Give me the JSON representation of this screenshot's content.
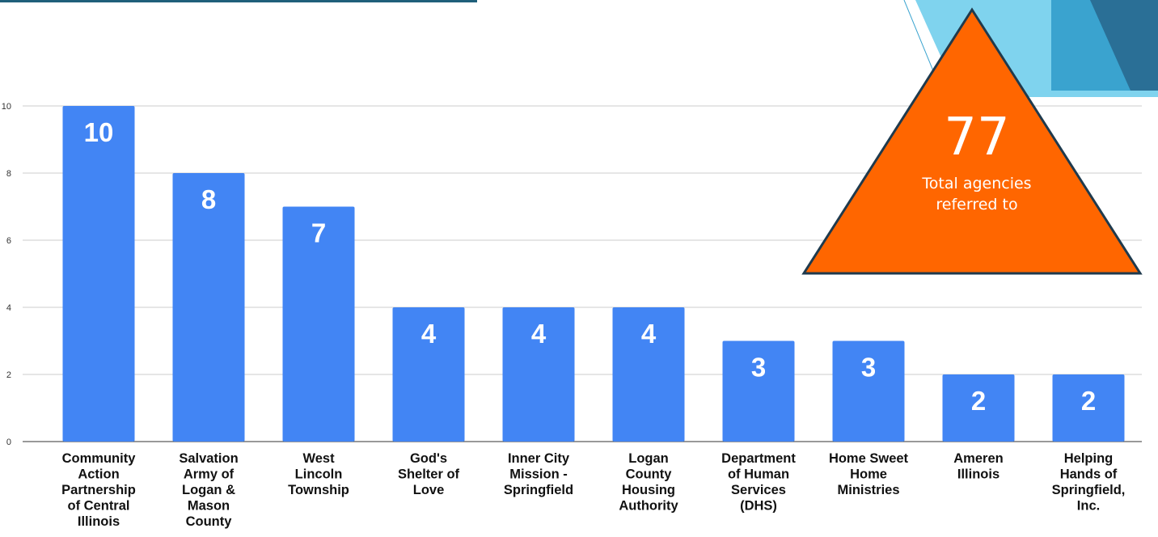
{
  "chart_data": {
    "type": "bar",
    "title": "",
    "xlabel": "",
    "ylabel": "",
    "ylim": [
      0,
      10
    ],
    "yticks": [
      0,
      2,
      4,
      6,
      8,
      10
    ],
    "grid": true,
    "bar_color": "#4285f4",
    "categories": [
      "Community Action Partnership of Central Illinois",
      "Salvation Army of Logan & Mason County",
      "West Lincoln Township",
      "God's Shelter of Love",
      "Inner City Mission - Springfield",
      "Logan County Housing Authority",
      "Department of Human Services (DHS)",
      "Home Sweet Home Ministries",
      "Ameren Illinois",
      "Helping Hands of Springfield, Inc."
    ],
    "category_lines": [
      [
        "Community",
        "Action",
        "Partnership",
        "of Central",
        "Illinois"
      ],
      [
        "Salvation",
        "Army of",
        "Logan &",
        "Mason",
        "County"
      ],
      [
        "West",
        "Lincoln",
        "Township"
      ],
      [
        "God's",
        "Shelter of",
        "Love"
      ],
      [
        "Inner City",
        "Mission -",
        "Springfield"
      ],
      [
        "Logan",
        "County",
        "Housing",
        "Authority"
      ],
      [
        "Department",
        "of Human",
        "Services",
        "(DHS)"
      ],
      [
        "Home Sweet",
        "Home",
        "Ministries"
      ],
      [
        "Ameren",
        "Illinois"
      ],
      [
        "Helping",
        "Hands of",
        "Springfield,",
        "Inc."
      ]
    ],
    "values": [
      10,
      8,
      7,
      4,
      4,
      4,
      3,
      3,
      2,
      2
    ]
  },
  "callout": {
    "value": "77",
    "caption": "Total agencies referred to",
    "fill_color": "#ff6600",
    "border_color": "#1f3a4d"
  },
  "decor": {
    "rule_color": "#1f5f7a",
    "corner_light": "#7fd3ee",
    "corner_mid": "#3aa3cf",
    "corner_dark": "#2a6f96"
  }
}
